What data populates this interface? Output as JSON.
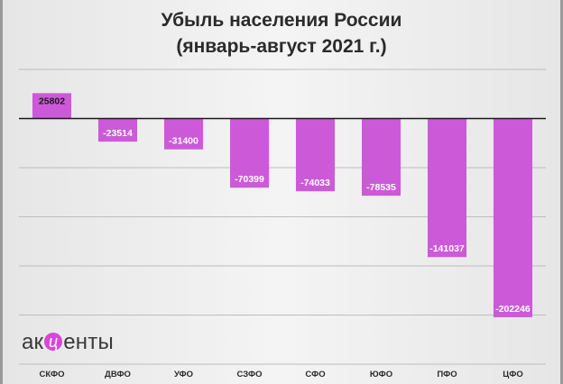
{
  "chart_data": {
    "type": "bar",
    "title": [
      "Убыль населения России",
      "(январь-август 2021 г.)"
    ],
    "categories": [
      "СКФО",
      "ДВФО",
      "УФО",
      "СЗФО",
      "СФО",
      "ЮФО",
      "ПФО",
      "ЦФО"
    ],
    "values": [
      25802,
      -23514,
      -31400,
      -70399,
      -74033,
      -78535,
      -141037,
      -202246
    ],
    "data_labels": [
      "25802",
      "-23514",
      "-31400",
      "-70399",
      "-74033",
      "-78535",
      "-141037",
      "-202246"
    ],
    "ylim": [
      -250000,
      50000
    ],
    "grid": true,
    "legend": "none",
    "bar_color": "#cc5ad8"
  },
  "logo": {
    "text_before": "ак",
    "accent_letter": "ц",
    "text_after": "енты"
  }
}
